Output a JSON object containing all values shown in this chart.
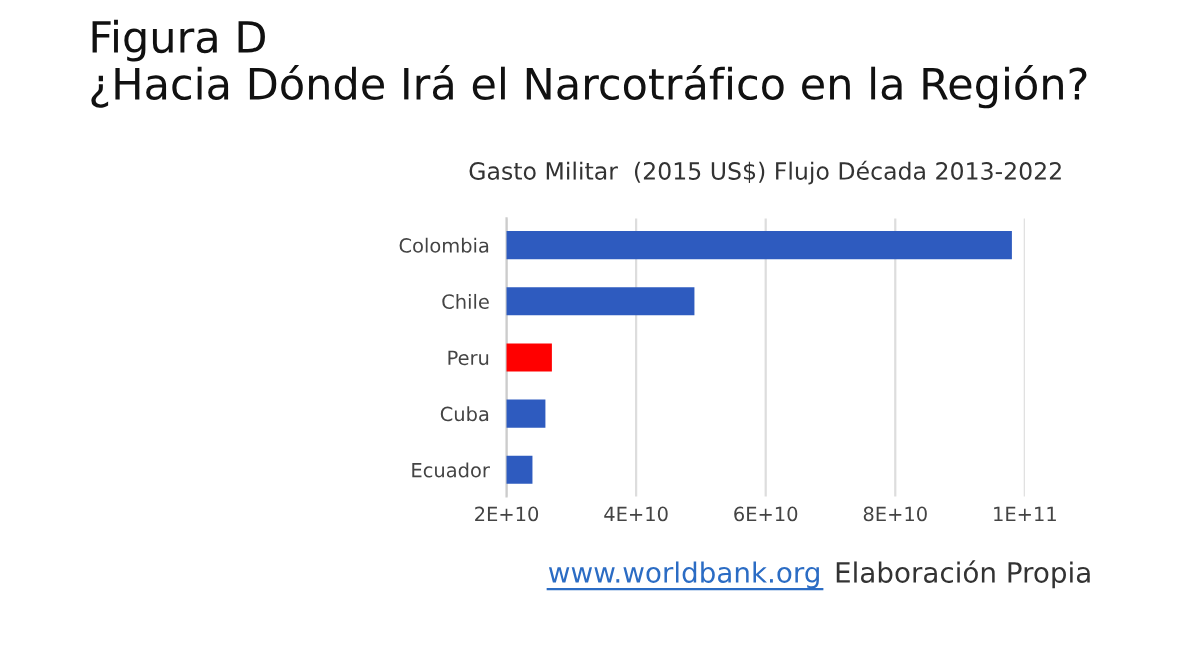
{
  "chart_data": {
    "type": "bar",
    "orientation": "horizontal",
    "title": "Figura D\n¿Hacia Dónde Irá el Narcotráfico en la Región?",
    "subtitle": "Gasto Militar  (2015 US$) Flujo Década 2013-2022",
    "categories": [
      "Colombia",
      "Chile",
      "Peru",
      "Cuba",
      "Ecuador"
    ],
    "values": [
      98000000000.0,
      49000000000.0,
      27000000000.0,
      26000000000.0,
      24000000000.0
    ],
    "colors": [
      "#2e5bbf",
      "#2e5bbf",
      "#ff0000",
      "#2e5bbf",
      "#2e5bbf"
    ],
    "xlim": [
      20000000000.0,
      100000000000.0
    ],
    "xticks": [
      {
        "value": 20000000000.0,
        "label": "2E+10"
      },
      {
        "value": 40000000000.0,
        "label": "4E+10"
      },
      {
        "value": 60000000000.0,
        "label": "6E+10"
      },
      {
        "value": 80000000000.0,
        "label": "8E+10"
      },
      {
        "value": 100000000000.0,
        "label": "1E+11"
      }
    ],
    "grid": "x",
    "legend": false,
    "annotations": [
      "www.worldbank.org",
      "Elaboración Propia"
    ]
  }
}
